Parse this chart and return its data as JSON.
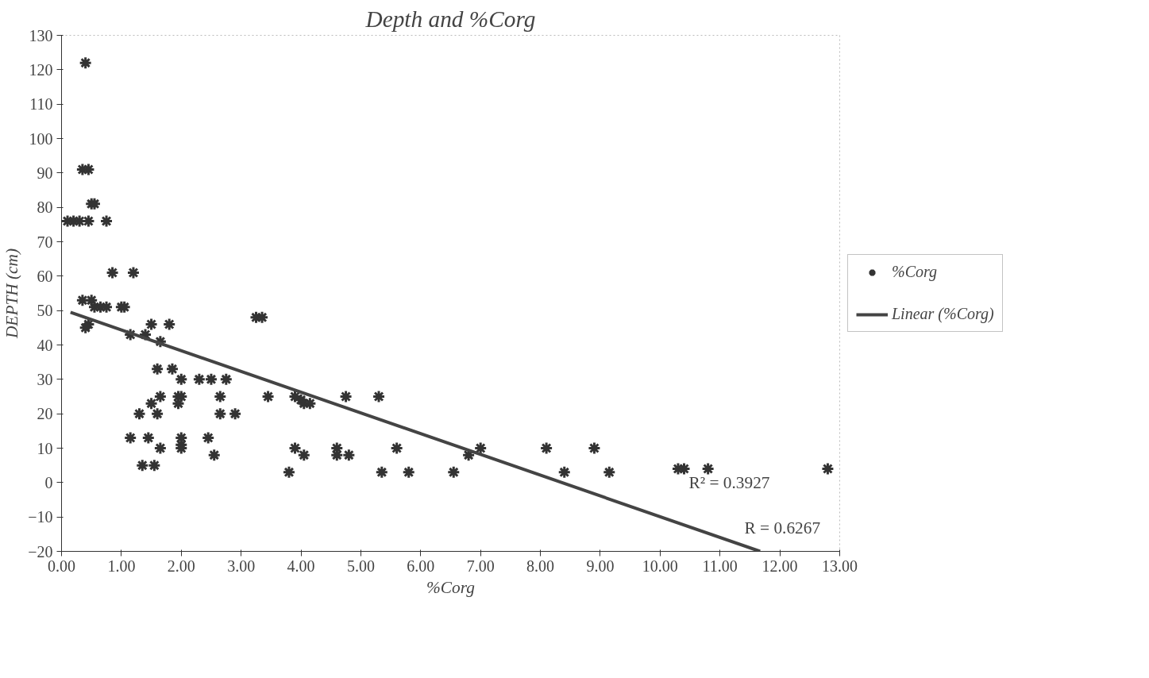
{
  "chart_data": {
    "type": "scatter",
    "title": "Depth and %Corg",
    "xlabel": "%Corg",
    "ylabel": "DEPTH (cm)",
    "xlim": [
      0,
      13
    ],
    "ylim": [
      -20,
      130
    ],
    "xticks": [
      {
        "value": 0,
        "label": "0.00"
      },
      {
        "value": 1,
        "label": "1.00"
      },
      {
        "value": 2,
        "label": "2.00"
      },
      {
        "value": 3,
        "label": "3.00"
      },
      {
        "value": 4,
        "label": "4.00"
      },
      {
        "value": 5,
        "label": "5.00"
      },
      {
        "value": 6,
        "label": "6.00"
      },
      {
        "value": 7,
        "label": "7.00"
      },
      {
        "value": 8,
        "label": "8.00"
      },
      {
        "value": 9,
        "label": "9.00"
      },
      {
        "value": 10,
        "label": "10.00"
      },
      {
        "value": 11,
        "label": "11.00"
      },
      {
        "value": 12,
        "label": "12.00"
      },
      {
        "value": 13,
        "label": "13.00"
      }
    ],
    "yticks": [
      -20,
      -10,
      0,
      10,
      20,
      30,
      40,
      50,
      60,
      70,
      80,
      90,
      100,
      110,
      120,
      130
    ],
    "grid": false,
    "legend": "right",
    "series": [
      {
        "name": "%Corg",
        "marker": "cross",
        "color": "#333333",
        "x": [
          0.4,
          0.35,
          0.45,
          0.5,
          0.55,
          0.1,
          0.2,
          0.3,
          0.45,
          0.75,
          0.85,
          1.2,
          0.35,
          0.5,
          0.55,
          0.65,
          0.75,
          1.0,
          1.05,
          0.45,
          0.4,
          1.15,
          1.4,
          1.5,
          1.8,
          1.65,
          1.6,
          1.85,
          2.0,
          2.3,
          2.5,
          2.75,
          1.95,
          2.0,
          1.65,
          2.65,
          1.5,
          1.95,
          1.3,
          1.6,
          2.65,
          2.9,
          1.15,
          1.45,
          2.0,
          2.45,
          1.65,
          2.0,
          2.0,
          2.55,
          1.35,
          1.55,
          3.25,
          3.35,
          3.45,
          3.9,
          4.0,
          4.05,
          4.15,
          4.75,
          5.3,
          3.8,
          3.9,
          4.05,
          4.6,
          4.6,
          4.8,
          5.35,
          5.6,
          5.8,
          6.55,
          6.8,
          7.0,
          8.1,
          8.4,
          8.9,
          9.15,
          10.3,
          10.4,
          10.8,
          12.8
        ],
        "values": [
          122,
          91,
          91,
          81,
          81,
          76,
          76,
          76,
          76,
          76,
          61,
          61,
          53,
          53,
          51,
          51,
          51,
          51,
          51,
          46,
          45,
          43,
          43,
          46,
          46,
          41,
          33,
          33,
          30,
          30,
          30,
          30,
          25,
          25,
          25,
          25,
          23,
          23,
          20,
          20,
          20,
          20,
          13,
          13,
          13,
          13,
          10,
          10,
          11,
          8,
          5,
          5,
          48,
          48,
          25,
          25,
          24,
          23,
          23,
          25,
          25,
          3,
          10,
          8,
          10,
          8,
          8,
          3,
          10,
          3,
          3,
          8,
          10,
          10,
          3,
          10,
          3,
          4,
          4,
          4,
          4
        ]
      },
      {
        "name": "Linear (%Corg)",
        "type": "line",
        "color": "#444444",
        "x": [
          0.15,
          11.67
        ],
        "values": [
          49.5,
          -20
        ]
      }
    ],
    "annotations": [
      "R² = 0.3927",
      "R = 0.6267"
    ]
  }
}
